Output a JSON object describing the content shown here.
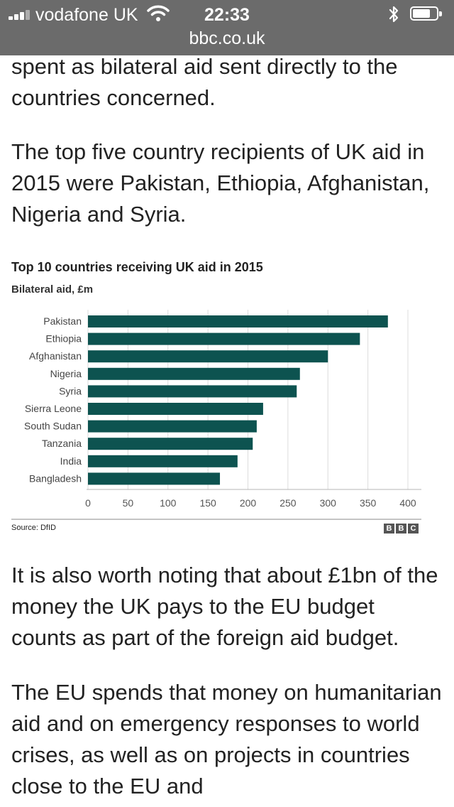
{
  "status_bar": {
    "carrier": "vodafone UK",
    "time": "22:33",
    "url": "bbc.co.uk"
  },
  "article": {
    "paragraphs": [
      "spent as bilateral aid sent directly to the countries concerned.",
      "The top five country recipients of UK aid in 2015 were Pakistan, Ethiopia, Afghanistan, Nigeria and Syria.",
      "It is also worth noting that about £1bn of the money the UK pays to the EU budget counts as part of the foreign aid budget.",
      "The EU spends that money on humanitarian aid and on emergency responses to world crises, as well as on projects in countries close to the EU and"
    ]
  },
  "chart_data": {
    "type": "bar",
    "orientation": "horizontal",
    "title": "Top 10 countries receiving UK aid in 2015",
    "subtitle": "Bilateral aid, £m",
    "categories": [
      "Pakistan",
      "Ethiopia",
      "Afghanistan",
      "Nigeria",
      "Syria",
      "Sierra Leone",
      "South Sudan",
      "Tanzania",
      "India",
      "Bangladesh"
    ],
    "values": [
      375,
      340,
      300,
      265,
      261,
      219,
      211,
      206,
      187,
      165
    ],
    "xlim": [
      0,
      400
    ],
    "xticks": [
      "0",
      "50",
      "100",
      "150",
      "200",
      "250",
      "300",
      "350",
      "400"
    ],
    "grid": true,
    "bar_color": "#0d5350",
    "source": "Source: DfID",
    "logo": "BBC"
  }
}
